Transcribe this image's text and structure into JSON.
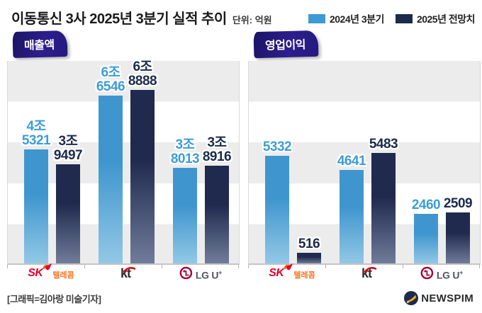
{
  "header": {
    "title": "이동통신 3사 2025년 3분기 실적 추이",
    "unit": "단위: 억원",
    "legend": [
      {
        "label": "2024년 3분기",
        "color": "#3E9AD2"
      },
      {
        "label": "2025년 전망치",
        "color": "#1C2A4E"
      }
    ]
  },
  "chart_data": [
    {
      "type": "bar",
      "title": "매출액",
      "unit": "억원",
      "categories": [
        "SK텔레콤",
        "kt",
        "LG U+"
      ],
      "series": [
        {
          "name": "2024년 3분기",
          "values": [
            45321,
            66546,
            38013
          ],
          "labels": [
            "4조\n5321",
            "6조\n6546",
            "3조\n8013"
          ]
        },
        {
          "name": "2025년 전망치",
          "values": [
            39497,
            68888,
            38916
          ],
          "labels": [
            "3조\n9497",
            "6조\n8888",
            "3조\n8916"
          ]
        }
      ],
      "xlabel": "",
      "ylabel": "",
      "ylim": [
        0,
        81000
      ],
      "grid": "horizontal-bands",
      "legend_position": "top-right"
    },
    {
      "type": "bar",
      "title": "영업이익",
      "unit": "억원",
      "categories": [
        "SK텔레콤",
        "kt",
        "LG U+"
      ],
      "series": [
        {
          "name": "2024년 3분기",
          "values": [
            5332,
            4641,
            2460
          ],
          "labels": [
            "5332",
            "4641",
            "2460"
          ]
        },
        {
          "name": "2025년 전망치",
          "values": [
            516,
            5483,
            2509
          ],
          "labels": [
            "516",
            "5483",
            "2509"
          ]
        }
      ],
      "xlabel": "",
      "ylabel": "",
      "ylim": [
        0,
        10100
      ],
      "grid": "horizontal-bands",
      "legend_position": "top-right"
    }
  ],
  "colors": {
    "bar_2024_top": "#3F96CE",
    "bar_2024_bottom": "#93C8E6",
    "bar_2025_top": "#1F2A4E",
    "bar_2025_bottom": "#707C99",
    "label_2024": "#3E9CD6",
    "label_2025": "#1B2B4D",
    "ribbon": "#241A7E",
    "stripe": "#ECECEC",
    "sk_red": "#E4002B",
    "sk_orange": "#F47725",
    "kt_black": "#2F2F2F",
    "kt_red": "#E60012",
    "lg_magenta": "#A50034",
    "lg_gray": "#54565A",
    "newspim_navy": "#1E2A4E",
    "newspim_yellow": "#F0AF1D"
  },
  "companies": {
    "sk": {
      "main": "SK",
      "sub": "텔레콤"
    },
    "kt": {
      "main": "kt"
    },
    "lg": {
      "main": "LG U",
      "plus": "+"
    }
  },
  "footer": {
    "credit": "[그래픽=김아랑 미술기자]",
    "brand": "NEWSPIM"
  }
}
